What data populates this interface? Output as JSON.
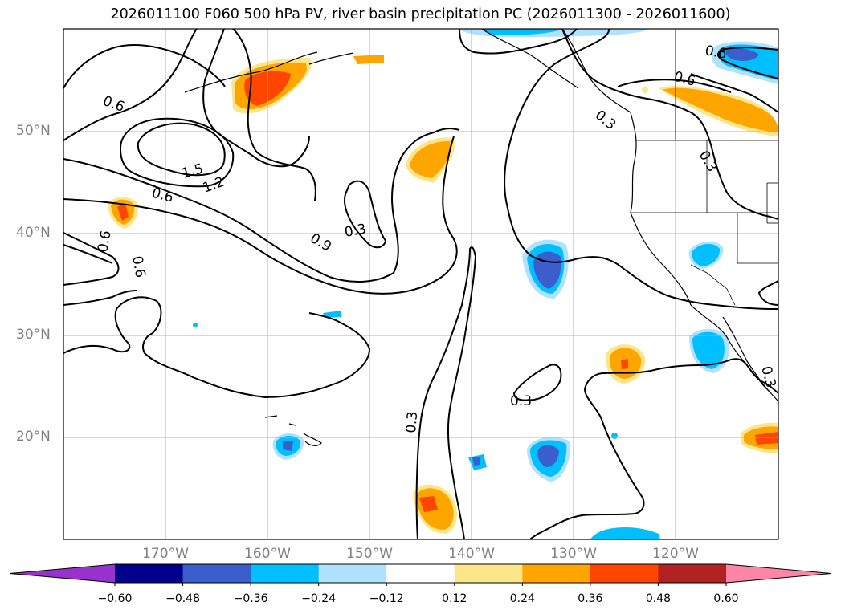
{
  "title": "2026011100 F060 500 hPa PV, river basin precipitation PC (2026011300 - 2026011600)",
  "map": {
    "lat_labels": [
      "50°N",
      "40°N",
      "30°N",
      "20°N"
    ],
    "lon_labels": [
      "170°W",
      "160°W",
      "150°W",
      "140°W",
      "130°W",
      "120°W"
    ],
    "pv_contour_labels": [
      "0.6",
      "1.5",
      "1.2",
      "0.6",
      "0.9",
      "0.3",
      "0.6",
      "0.6",
      "0.3",
      "0.6",
      "0.6",
      "0.3",
      "0.3",
      "0.3",
      "0.3"
    ]
  },
  "colorbar": {
    "ticks": [
      "−0.60",
      "−0.48",
      "−0.36",
      "−0.24",
      "−0.12",
      "0.12",
      "0.24",
      "0.36",
      "0.48",
      "0.60"
    ],
    "colors": [
      "#9932cc",
      "#00008b",
      "#3a5fcd",
      "#00bfff",
      "#b0e2ff",
      "#ffffff",
      "#fde68a",
      "#ffa500",
      "#ff4500",
      "#b22222",
      "#ff85a8"
    ]
  }
}
